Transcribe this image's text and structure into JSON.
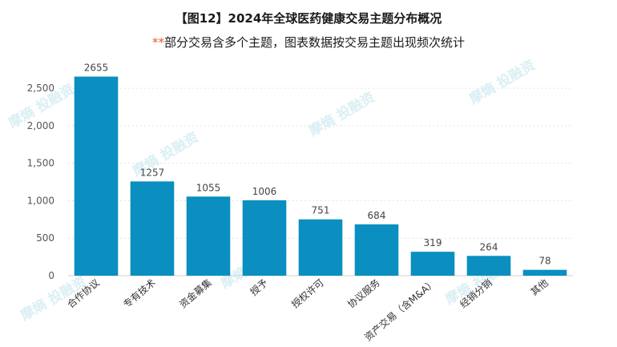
{
  "chart_data": {
    "type": "bar",
    "title": "【图12】2024年全球医药健康交易主题分布概况",
    "subtitle_marker": "**",
    "subtitle": "部分交易含多个主题，图表数据按交易主题出现频次统计",
    "categories": [
      "合作协议",
      "专有技术",
      "资金募集",
      "授予",
      "授权许可",
      "协议服务",
      "资产交易（含M&A）",
      "经销分销",
      "其他"
    ],
    "values": [
      2655,
      1257,
      1055,
      1006,
      751,
      684,
      319,
      264,
      78
    ],
    "yticks": [
      "2,500",
      "2,000",
      "1,500",
      "1,000",
      "500",
      "0"
    ],
    "ytick_values": [
      2500,
      2000,
      1500,
      1000,
      500,
      0
    ],
    "ylim": [
      0,
      2800
    ],
    "bar_color": "#0a8fc0",
    "grid": true
  },
  "watermark": "摩熵 投融资"
}
